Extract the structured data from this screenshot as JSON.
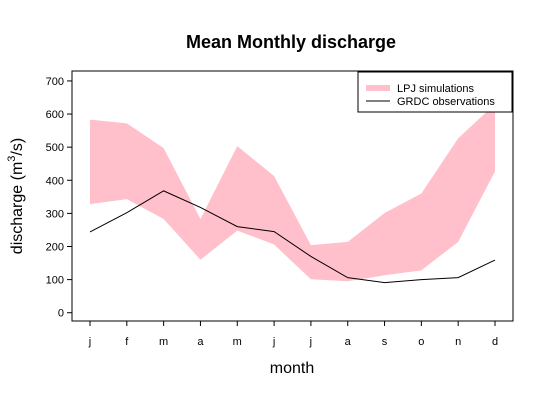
{
  "chart_data": {
    "type": "area",
    "title": "Mean Monthly discharge",
    "xlabel": "month",
    "ylabel_main": "discharge (m",
    "ylabel_sup": "3",
    "ylabel_tail": "/s)",
    "categories": [
      "j",
      "f",
      "m",
      "a",
      "m",
      "j",
      "j",
      "a",
      "s",
      "o",
      "n",
      "d"
    ],
    "ylim": [
      -25,
      730
    ],
    "yticks": [
      0,
      100,
      200,
      300,
      400,
      500,
      600,
      700
    ],
    "ytick_labels": [
      "0",
      "100",
      "200",
      "300",
      "400",
      "500",
      "600",
      "700"
    ],
    "grid": false,
    "legend_position": "top-right",
    "band": {
      "name": "LPJ simulations",
      "color": "#ffc0cb",
      "upper": [
        583,
        572,
        497,
        283,
        503,
        413,
        204,
        214,
        301,
        360,
        527,
        630
      ],
      "lower": [
        328,
        343,
        283,
        160,
        248,
        206,
        101,
        95,
        113,
        128,
        214,
        427
      ]
    },
    "series": [
      {
        "name": "GRDC observations",
        "color": "#000000",
        "values": [
          244,
          302,
          368,
          318,
          260,
          245,
          170,
          106,
          91,
          100,
          106,
          159
        ]
      }
    ]
  }
}
